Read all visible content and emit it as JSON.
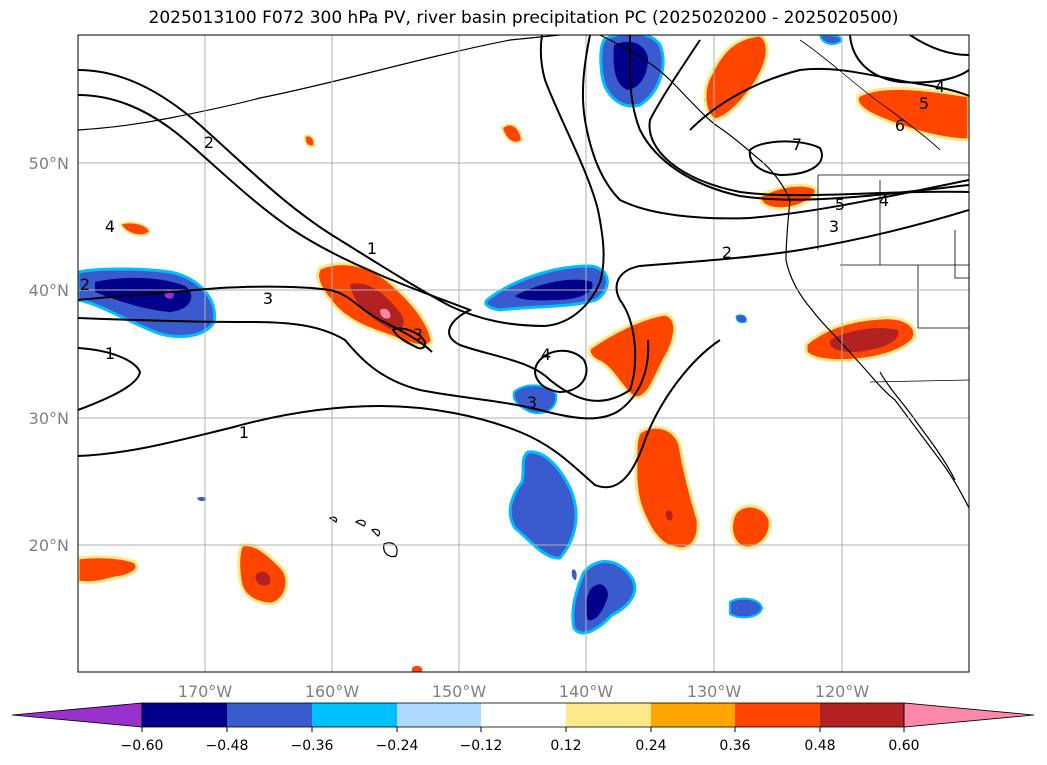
{
  "title": "2025013100 F072 300 hPa PV, river basin precipitation PC (2025020200 - 2025020500)",
  "lat_labels": [
    "50°N",
    "40°N",
    "30°N",
    "20°N"
  ],
  "lon_labels": [
    "170°W",
    "160°W",
    "150°W",
    "140°W",
    "130°W",
    "120°W"
  ],
  "colorbar": {
    "colors": [
      "#9932cc",
      "#00008b",
      "#3a5bcd",
      "#00bfff",
      "#add8ff",
      "#ffffff",
      "#ffe98b",
      "#ffa500",
      "#ff4500",
      "#b22222",
      "#ff88aa"
    ],
    "ticks": [
      "−0.60",
      "−0.48",
      "−0.36",
      "−0.24",
      "−0.12",
      "0.12",
      "0.24",
      "0.36",
      "0.48",
      "0.60"
    ]
  },
  "pv_contour_labels": [
    "1",
    "1",
    "1",
    "2",
    "2",
    "3",
    "3",
    "3",
    "3",
    "4",
    "4",
    "4",
    "4",
    "5",
    "5",
    "6",
    "7",
    "2"
  ]
}
